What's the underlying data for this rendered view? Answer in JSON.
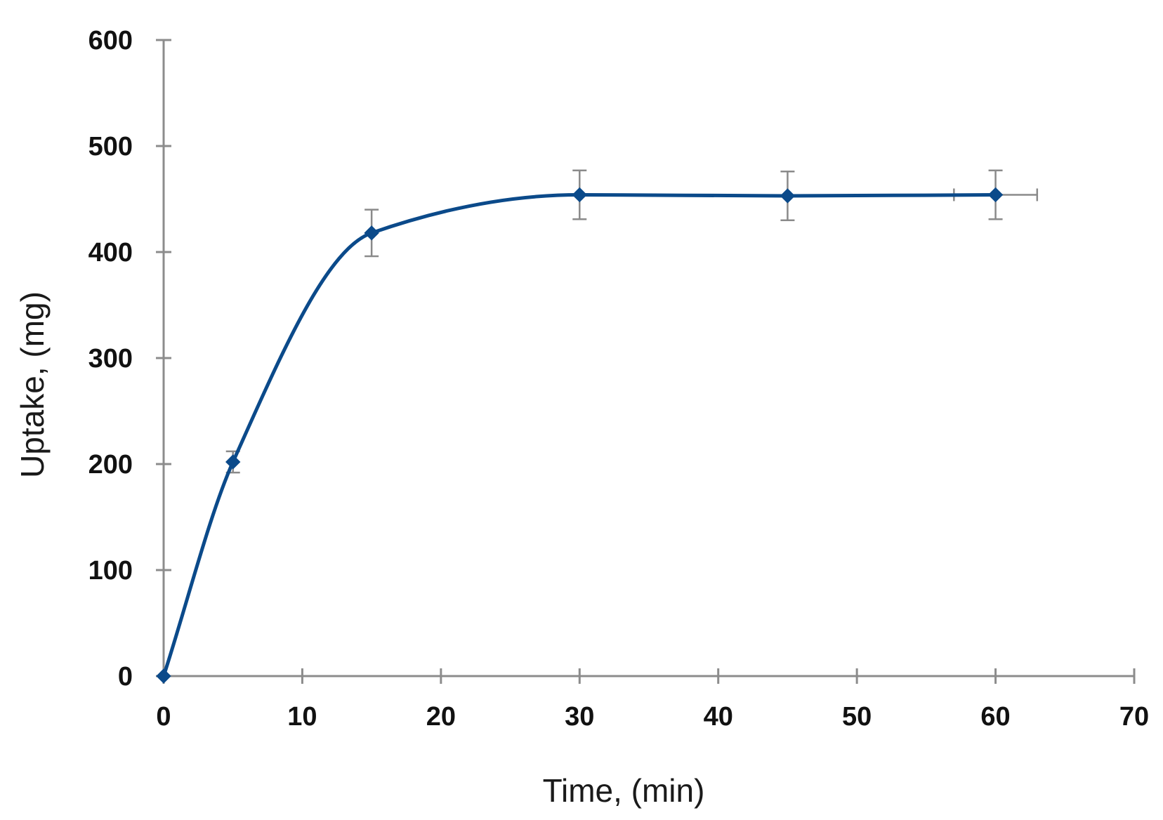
{
  "chart_data": {
    "type": "line",
    "title": "",
    "xlabel": "Time, (min)",
    "ylabel": "Uptake, (mg)",
    "xlim": [
      0,
      70
    ],
    "ylim": [
      0,
      600
    ],
    "x_ticks": [
      0,
      10,
      20,
      30,
      40,
      50,
      60,
      70
    ],
    "y_ticks": [
      0,
      100,
      200,
      300,
      400,
      500,
      600
    ],
    "grid": false,
    "smooth": true,
    "series": [
      {
        "color": "#0b4a8a",
        "marker": "diamond",
        "x": [
          0,
          5,
          15,
          30,
          45,
          60
        ],
        "y": [
          0,
          202,
          418,
          454,
          453,
          454
        ],
        "y_error": [
          0,
          10,
          22,
          23,
          23,
          23
        ],
        "x_error": [
          0,
          0,
          0,
          0,
          0,
          3
        ]
      }
    ]
  }
}
